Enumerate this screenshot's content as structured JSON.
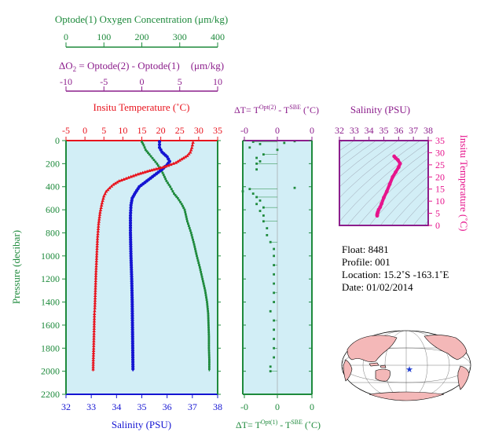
{
  "colors": {
    "green": "#1e8a3c",
    "red": "#e8141e",
    "blue": "#1414d2",
    "purple": "#8c1e8c",
    "magenta": "#e6148c",
    "panel": "#d2eef6",
    "land": "#f4b8b8",
    "ocean": "#ffffff",
    "marker": "#1e3cd2"
  },
  "header": {
    "oxygen_label": "Optode(1) Oxygen Concentration (μm/kg)",
    "oxygen_ticks": [
      "0",
      "100",
      "200",
      "300",
      "400"
    ],
    "delta_o2_label": "ΔO",
    "delta_o2_sub": "2",
    "delta_o2_rest": " = Optode(2) - Optode(1)",
    "delta_o2_units": "(μm/kg)",
    "delta_o2_ticks": [
      "-10",
      "-5",
      "0",
      "5",
      "10"
    ]
  },
  "info": {
    "float": "Float:  8481",
    "profile": "Profile:  001",
    "location": "Location:  15.2˚S  -163.1˚E",
    "date": "Date:  01/02/2014"
  },
  "footer_tiny": "",
  "chart_data": [
    {
      "id": "main_profile",
      "type": "line",
      "ylabel": "Pressure (decibar)",
      "yticks": [
        0,
        200,
        400,
        600,
        800,
        1000,
        1200,
        1400,
        1600,
        1800,
        2000,
        2200
      ],
      "ylim": [
        2200,
        0
      ],
      "axes": {
        "temperature": {
          "title": "Insitu Temperature (˚C)",
          "ticks": [
            -5,
            0,
            5,
            10,
            15,
            20,
            25,
            30,
            35
          ],
          "range": [
            -5,
            35
          ]
        },
        "salinity": {
          "title": "Salinity (PSU)",
          "ticks": [
            32,
            33,
            34,
            35,
            36,
            37,
            38
          ],
          "range": [
            32,
            38
          ]
        },
        "oxygen": {
          "ticks": [
            0,
            100,
            200,
            300,
            400
          ],
          "range": [
            0,
            400
          ]
        }
      },
      "series": [
        {
          "name": "Insitu Temperature (˚C)",
          "axis": "temperature",
          "points": [
            [
              28.5,
              15
            ],
            [
              28.2,
              60
            ],
            [
              27.8,
              100
            ],
            [
              27,
              130
            ],
            [
              25.5,
              160
            ],
            [
              24,
              190
            ],
            [
              22,
              215
            ],
            [
              20,
              235
            ],
            [
              17,
              260
            ],
            [
              14,
              290
            ],
            [
              11.5,
              320
            ],
            [
              9,
              350
            ],
            [
              7.5,
              380
            ],
            [
              6.5,
              410
            ],
            [
              5.6,
              440
            ],
            [
              5,
              480
            ],
            [
              4.5,
              540
            ],
            [
              4,
              620
            ],
            [
              3.6,
              720
            ],
            [
              3.3,
              850
            ],
            [
              3.1,
              1000
            ],
            [
              2.9,
              1150
            ],
            [
              2.75,
              1300
            ],
            [
              2.6,
              1450
            ],
            [
              2.5,
              1500
            ],
            [
              2.4,
              1650
            ],
            [
              2.3,
              1800
            ],
            [
              2.2,
              1900
            ],
            [
              2.15,
              2000
            ]
          ]
        },
        {
          "name": "Salinity (PSU)",
          "axis": "salinity",
          "points": [
            [
              35.7,
              10
            ],
            [
              35.7,
              60
            ],
            [
              35.8,
              100
            ],
            [
              36,
              140
            ],
            [
              36.1,
              180
            ],
            [
              36,
              210
            ],
            [
              35.8,
              250
            ],
            [
              35.5,
              300
            ],
            [
              35.2,
              350
            ],
            [
              34.9,
              400
            ],
            [
              34.75,
              450
            ],
            [
              34.62,
              500
            ],
            [
              34.57,
              560
            ],
            [
              34.55,
              650
            ],
            [
              34.55,
              800
            ],
            [
              34.57,
              1000
            ],
            [
              34.6,
              1200
            ],
            [
              34.62,
              1400
            ],
            [
              34.63,
              1600
            ],
            [
              34.64,
              1800
            ],
            [
              34.65,
              2000
            ]
          ]
        },
        {
          "name": "Optode(1) Oxygen Concentration (μm/kg)",
          "axis": "oxygen",
          "points": [
            [
              200,
              10
            ],
            [
              205,
              40
            ],
            [
              210,
              80
            ],
            [
              220,
              120
            ],
            [
              240,
              200
            ],
            [
              255,
              280
            ],
            [
              265,
              350
            ],
            [
              275,
              400
            ],
            [
              285,
              460
            ],
            [
              295,
              500
            ],
            [
              305,
              550
            ],
            [
              313,
              600
            ],
            [
              320,
              700
            ],
            [
              330,
              800
            ],
            [
              338,
              900
            ],
            [
              345,
              1000
            ],
            [
              353,
              1100
            ],
            [
              360,
              1200
            ],
            [
              367,
              1300
            ],
            [
              372,
              1400
            ],
            [
              375,
              1500
            ],
            [
              376,
              1600
            ],
            [
              377,
              1700
            ],
            [
              377,
              1800
            ],
            [
              378,
              1900
            ],
            [
              378,
              2000
            ]
          ]
        }
      ]
    },
    {
      "id": "delta_t",
      "type": "scatter",
      "top_title": "ΔT= T^Opt(2) - T^SBE (˚C)",
      "bottom_title": "ΔT= T^Opt(1) - T^SBE (˚C)",
      "top_ticks": [
        "-0",
        "0",
        "0"
      ],
      "bottom_ticks": [
        "-0",
        "0",
        "0"
      ],
      "ylim": [
        2200,
        0
      ],
      "points": [
        [
          -0.07,
          10
        ],
        [
          -0.05,
          30
        ],
        [
          -0.08,
          60
        ],
        [
          0,
          80
        ],
        [
          0.02,
          20
        ],
        [
          0.05,
          5
        ],
        [
          -0.04,
          120
        ],
        [
          -0.06,
          150
        ],
        [
          -0.05,
          180
        ],
        [
          -0.06,
          200
        ],
        [
          -0.06,
          250
        ],
        [
          0.05,
          410
        ],
        [
          -0.08,
          420
        ],
        [
          -0.1,
          440
        ],
        [
          -0.07,
          460
        ],
        [
          -0.06,
          490
        ],
        [
          -0.05,
          520
        ],
        [
          -0.06,
          550
        ],
        [
          -0.04,
          580
        ],
        [
          -0.05,
          610
        ],
        [
          -0.04,
          650
        ],
        [
          -0.04,
          700
        ],
        [
          -0.03,
          760
        ],
        [
          -0.03,
          820
        ],
        [
          -0.02,
          880
        ],
        [
          -0.01,
          940
        ],
        [
          -0.01,
          1000
        ],
        [
          -0.01,
          1080
        ],
        [
          -0.01,
          1160
        ],
        [
          -0.01,
          1240
        ],
        [
          -0.01,
          1320
        ],
        [
          -0.01,
          1400
        ],
        [
          -0.02,
          1480
        ],
        [
          -0.01,
          1560
        ],
        [
          -0.01,
          1640
        ],
        [
          -0.01,
          1720
        ],
        [
          -0.01,
          1800
        ],
        [
          -0.01,
          1880
        ],
        [
          -0.02,
          1960
        ],
        [
          -0.02,
          2000
        ]
      ]
    },
    {
      "id": "ts_diagram",
      "type": "line",
      "title": "Salinity (PSU)",
      "ylabel": "Insitu Temperature (˚C)",
      "xticks": [
        32,
        33,
        34,
        35,
        36,
        37,
        38
      ],
      "yticks": [
        0,
        5,
        10,
        15,
        20,
        25,
        30,
        35
      ],
      "xlim": [
        32,
        38
      ],
      "ylim": [
        0,
        35
      ],
      "series": [
        {
          "name": "T-S",
          "points": [
            [
              35.7,
              28.5
            ],
            [
              35.8,
              27.8
            ],
            [
              35.95,
              27
            ],
            [
              36.1,
              25.5
            ],
            [
              36,
              24
            ],
            [
              35.8,
              22
            ],
            [
              35.6,
              20
            ],
            [
              35.4,
              17
            ],
            [
              35.2,
              14
            ],
            [
              35,
              11.5
            ],
            [
              34.85,
              9
            ],
            [
              34.75,
              7.5
            ],
            [
              34.65,
              6.5
            ],
            [
              34.6,
              5.6
            ],
            [
              34.57,
              5
            ],
            [
              34.55,
              4.5
            ],
            [
              34.55,
              4
            ]
          ]
        }
      ]
    }
  ]
}
